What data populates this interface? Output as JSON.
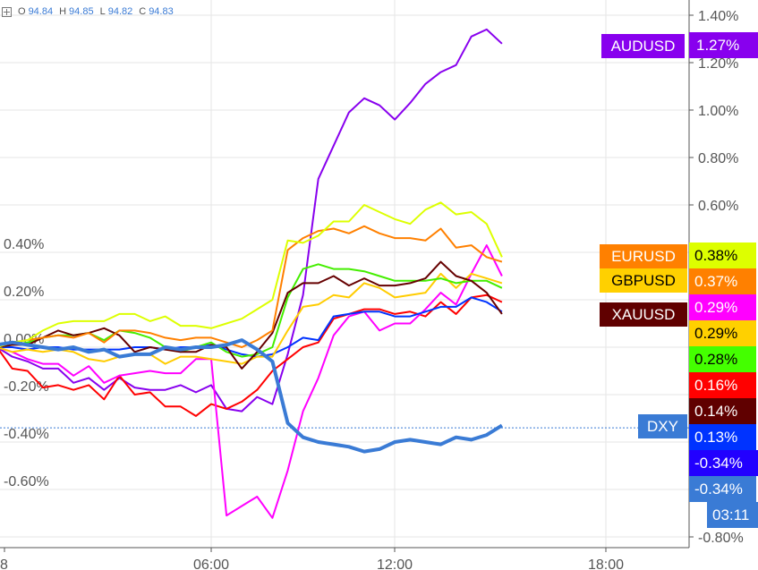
{
  "legend": {
    "o_label": "O",
    "o": "94.84",
    "h_label": "H",
    "h": "94.85",
    "l_label": "L",
    "l": "94.82",
    "c_label": "C",
    "c": "94.83"
  },
  "chart_data": {
    "type": "line",
    "ylim": [
      -0.86,
      1.46
    ],
    "y_ticks": [
      "1.40%",
      "1.20%",
      "1.00%",
      "0.80%",
      "0.60%",
      "0.40%",
      "0.20%",
      "0.00%",
      "-0.20%",
      "-0.40%",
      "-0.60%",
      "-0.80%"
    ],
    "y_tick_values": [
      1.4,
      1.2,
      1.0,
      0.8,
      0.6,
      0.4,
      0.2,
      0,
      -0.2,
      -0.4,
      -0.6,
      -0.8
    ],
    "x_ticks": [
      "8",
      "06:00",
      "12:00",
      "18:00"
    ],
    "grid": true,
    "x": [
      "23:00",
      "23:30",
      "00:00",
      "00:30",
      "01:00",
      "01:30",
      "02:00",
      "02:30",
      "03:00",
      "03:30",
      "04:00",
      "04:30",
      "05:00",
      "05:30",
      "06:00",
      "06:30",
      "07:00",
      "07:30",
      "08:00",
      "08:30",
      "09:00",
      "09:30",
      "10:00",
      "10:30",
      "11:00",
      "11:30",
      "12:00",
      "12:30",
      "13:00",
      "13:30",
      "14:00",
      "14:30",
      "15:00",
      "15:30"
    ],
    "series": [
      {
        "color": "#8800ee",
        "values": [
          0,
          -0.04,
          -0.06,
          -0.09,
          -0.09,
          -0.15,
          -0.13,
          -0.18,
          -0.13,
          -0.17,
          -0.18,
          -0.18,
          -0.16,
          -0.19,
          -0.16,
          -0.26,
          -0.27,
          -0.21,
          -0.24,
          -0.03,
          0.22,
          0.71,
          0.85,
          0.99,
          1.05,
          1.02,
          0.96,
          1.03,
          1.11,
          1.16,
          1.19,
          1.31,
          1.34,
          1.28
        ],
        "name": "AUDUSD"
      },
      {
        "color": "#ff0000",
        "values": [
          0,
          -0.09,
          -0.1,
          -0.17,
          -0.16,
          -0.18,
          -0.16,
          -0.22,
          -0.12,
          -0.2,
          -0.19,
          -0.25,
          -0.25,
          -0.29,
          -0.24,
          -0.26,
          -0.23,
          -0.18,
          -0.1,
          -0.05,
          0,
          0.02,
          0.12,
          0.14,
          0.16,
          0.16,
          0.14,
          0.15,
          0.13,
          0.19,
          0.14,
          0.21,
          0.22,
          0.19
        ]
      },
      {
        "color": "#ff00ff",
        "values": [
          0,
          -0.02,
          -0.05,
          -0.07,
          -0.07,
          -0.12,
          -0.08,
          -0.15,
          -0.12,
          -0.11,
          -0.1,
          -0.11,
          -0.11,
          -0.05,
          -0.05,
          -0.71,
          -0.67,
          -0.63,
          -0.72,
          -0.52,
          -0.27,
          -0.13,
          0.05,
          0.13,
          0.15,
          0.07,
          0.1,
          0.1,
          0.16,
          0.23,
          0.18,
          0.31,
          0.43,
          0.3
        ]
      },
      {
        "color": "#0033ff",
        "values": [
          0,
          0,
          -0.01,
          0,
          0,
          -0.01,
          -0.01,
          -0.01,
          -0.01,
          0,
          0,
          -0.01,
          0,
          0,
          0.01,
          -0.01,
          -0.03,
          -0.04,
          -0.03,
          0,
          0.04,
          0.03,
          0.13,
          0.14,
          0.15,
          0.15,
          0.13,
          0.13,
          0.15,
          0.17,
          0.17,
          0.21,
          0.19,
          0.15
        ]
      },
      {
        "color": "#ffcc00",
        "values": [
          0,
          -0.02,
          -0.01,
          -0.02,
          -0.01,
          -0.02,
          -0.05,
          -0.06,
          -0.04,
          -0.03,
          -0.03,
          -0.07,
          -0.04,
          -0.04,
          -0.05,
          -0.06,
          -0.07,
          -0.04,
          -0.04,
          0.07,
          0.17,
          0.18,
          0.22,
          0.21,
          0.27,
          0.25,
          0.21,
          0.22,
          0.23,
          0.31,
          0.25,
          0.31,
          0.29,
          0.27
        ],
        "name": "GBPUSD"
      },
      {
        "color": "#44ee00",
        "values": [
          0,
          0.01,
          0.02,
          0.04,
          0.05,
          0.05,
          0.06,
          0.03,
          0.07,
          0.06,
          0.04,
          0,
          -0.02,
          0,
          0.02,
          -0.02,
          -0.04,
          -0.03,
          0,
          0.21,
          0.33,
          0.35,
          0.33,
          0.33,
          0.32,
          0.3,
          0.28,
          0.28,
          0.28,
          0.29,
          0.27,
          0.28,
          0.28,
          0.25
        ]
      },
      {
        "color": "#660000",
        "values": [
          0,
          0.01,
          0.01,
          0.04,
          0.07,
          0.05,
          0.06,
          0.08,
          0.05,
          -0.02,
          0,
          -0.01,
          -0.02,
          -0.02,
          0.01,
          0,
          -0.09,
          -0.02,
          0.06,
          0.23,
          0.27,
          0.27,
          0.3,
          0.26,
          0.29,
          0.26,
          0.26,
          0.27,
          0.29,
          0.36,
          0.3,
          0.28,
          0.23,
          0.14
        ],
        "name": "XAUUSD"
      },
      {
        "color": "#ff8000",
        "values": [
          0,
          0.02,
          0.03,
          0.04,
          0.05,
          0.04,
          0.06,
          0.02,
          0.07,
          0.07,
          0.06,
          0.04,
          0.03,
          0.04,
          0.04,
          0.02,
          0,
          0.03,
          0.07,
          0.41,
          0.46,
          0.49,
          0.5,
          0.48,
          0.51,
          0.48,
          0.46,
          0.46,
          0.45,
          0.5,
          0.42,
          0.43,
          0.38,
          0.36
        ],
        "name": "EURUSD"
      },
      {
        "color": "#ddff00",
        "values": [
          0,
          0.02,
          0.03,
          0.07,
          0.1,
          0.11,
          0.11,
          0.11,
          0.14,
          0.14,
          0.11,
          0.13,
          0.09,
          0.09,
          0.08,
          0.1,
          0.12,
          0.16,
          0.2,
          0.45,
          0.44,
          0.47,
          0.53,
          0.53,
          0.6,
          0.57,
          0.54,
          0.52,
          0.58,
          0.61,
          0.56,
          0.57,
          0.52,
          0.38
        ]
      },
      {
        "color": "#3a7bd5",
        "values": [
          0.01,
          0.02,
          0.01,
          0,
          -0.01,
          0,
          -0.02,
          -0.01,
          -0.04,
          -0.03,
          -0.03,
          0,
          -0.01,
          0,
          0,
          0.01,
          0.03,
          -0.01,
          -0.06,
          -0.32,
          -0.38,
          -0.4,
          -0.41,
          -0.42,
          -0.44,
          -0.43,
          -0.4,
          -0.39,
          -0.4,
          -0.41,
          -0.38,
          -0.39,
          -0.37,
          -0.33
        ],
        "name": "DXY",
        "thick": true,
        "last_value_line": -0.34
      }
    ]
  },
  "name_labels": [
    {
      "text": "AUDUSD",
      "bg": "#8800ee",
      "fg": "#ffffff"
    },
    {
      "text": "EURUSD",
      "bg": "#ff8000",
      "fg": "#ffffff"
    },
    {
      "text": "GBPUSD",
      "bg": "#ffd000",
      "fg": "#000000"
    },
    {
      "text": "XAUUSD",
      "bg": "#600000",
      "fg": "#ffffff"
    },
    {
      "text": "DXY",
      "bg": "#3a7bd5",
      "fg": "#ffffff"
    }
  ],
  "value_badges": [
    {
      "text": "1.27%",
      "bg": "#8800ee",
      "fg": "#ffffff"
    },
    {
      "text": "0.38%",
      "bg": "#ddff00",
      "fg": "#000000"
    },
    {
      "text": "0.37%",
      "bg": "#ff8000",
      "fg": "#ffffff"
    },
    {
      "text": "0.29%",
      "bg": "#ff00ff",
      "fg": "#ffffff"
    },
    {
      "text": "0.29%",
      "bg": "#ffd000",
      "fg": "#000000"
    },
    {
      "text": "0.28%",
      "bg": "#44ff00",
      "fg": "#000000"
    },
    {
      "text": "0.16%",
      "bg": "#ff0000",
      "fg": "#ffffff"
    },
    {
      "text": "0.14%",
      "bg": "#600000",
      "fg": "#ffffff"
    },
    {
      "text": "0.13%",
      "bg": "#0033ff",
      "fg": "#ffffff"
    },
    {
      "text": "-0.34%",
      "bg": "#2200ff",
      "fg": "#ffffff"
    },
    {
      "text": "-0.34%",
      "bg": "#3a7bd5",
      "fg": "#ffffff"
    },
    {
      "text": "03:11",
      "bg": "#3a7bd5",
      "fg": "#ffffff"
    }
  ]
}
